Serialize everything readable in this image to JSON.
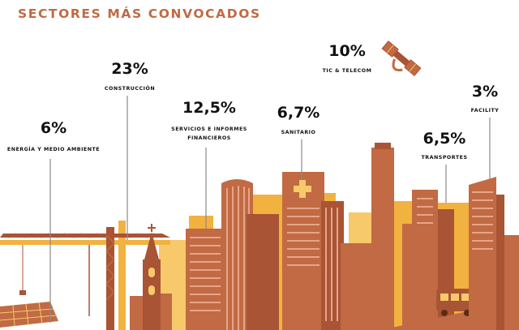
{
  "title": "SECTORES MÁS CONVOCADOS",
  "colors": {
    "title": "#c16a43",
    "building_main": "#c16a43",
    "building_dark": "#a95434",
    "building_light": "#f2b23f",
    "building_pale": "#f7c96b",
    "window": "#e8a48a",
    "text": "#111111"
  },
  "icons": {
    "telecom": "satellite-icon",
    "sanitario": "cross-icon",
    "transportes": "bus-icon",
    "energia": "solar-panel-icon",
    "construccion": "crane-icon"
  },
  "chart_data": {
    "type": "bar",
    "title": "SECTORES MÁS CONVOCADOS",
    "categories": [
      "ENERGÍA Y MEDIO AMBIENTE",
      "CONSTRUCCIÓN",
      "SERVICIOS E INFORMES FINANCIEROS",
      "SANITARIO",
      "TIC & TELECOM",
      "TRANSPORTES",
      "FACILITY"
    ],
    "values": [
      6,
      23,
      12.5,
      6.7,
      10,
      6.5,
      3
    ],
    "value_labels": [
      "6%",
      "23%",
      "12,5%",
      "6,7%",
      "10%",
      "6,5%",
      "3%"
    ],
    "label_lines": [
      [
        "ENERGÍA Y MEDIO AMBIENTE"
      ],
      [
        "CONSTRUCCIÓN"
      ],
      [
        "SERVICIOS E INFORMES",
        "FINANCIEROS"
      ],
      [
        "SANITARIO"
      ],
      [
        "TIC & TELECOM"
      ],
      [
        "TRANSPORTES"
      ],
      [
        "FACILITY"
      ]
    ],
    "unit": "%"
  }
}
